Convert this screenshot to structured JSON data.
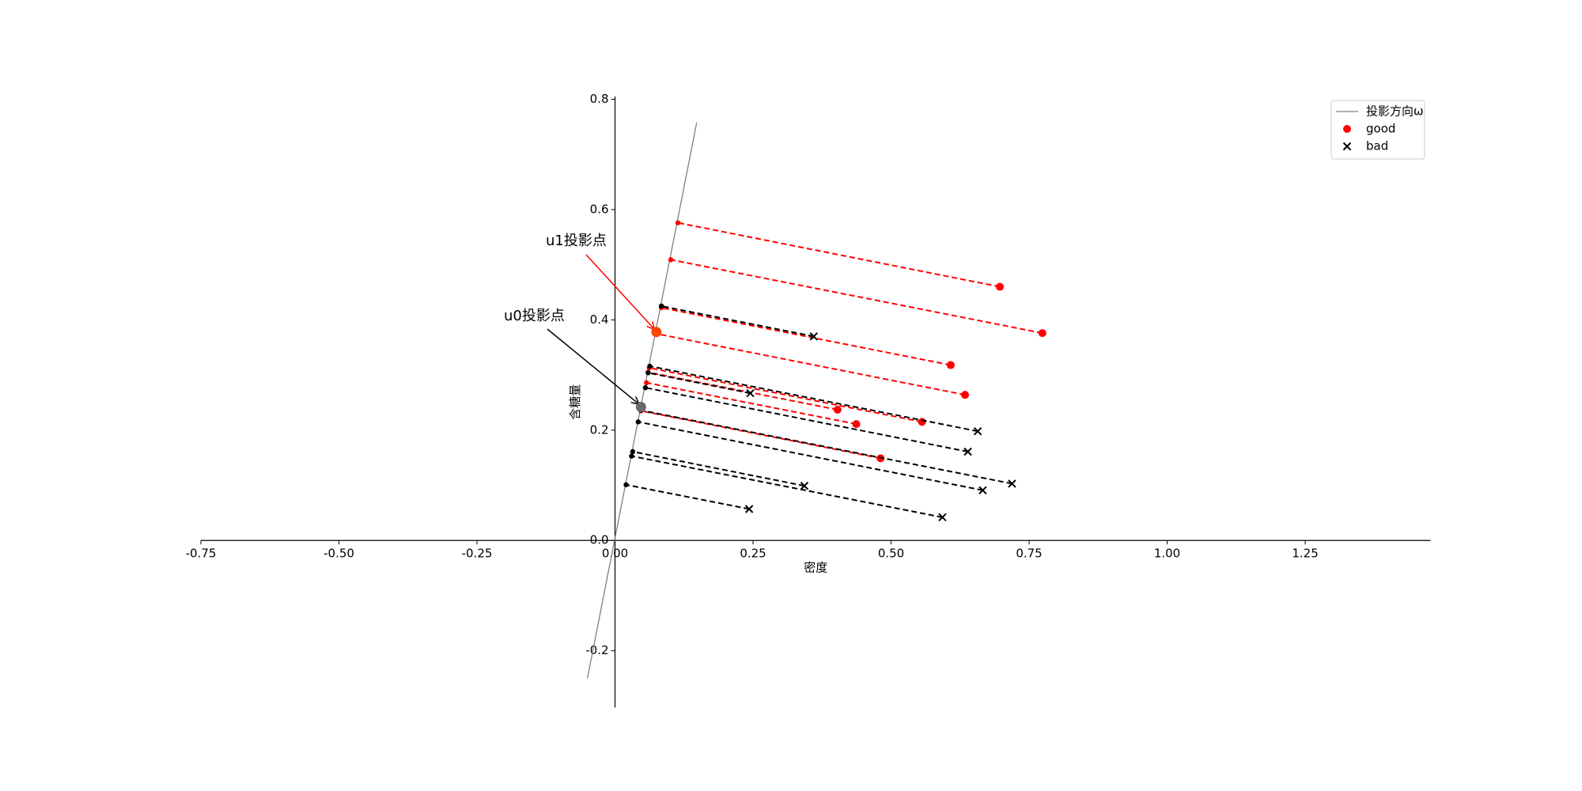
{
  "chart_data": {
    "type": "scatter",
    "xlabel": "密度",
    "ylabel": "含糖量",
    "xlim": [
      -0.75,
      1.477
    ],
    "ylim": [
      -0.303,
      0.805
    ],
    "xticks": [
      {
        "value": -0.75,
        "label": "-0.75"
      },
      {
        "value": -0.5,
        "label": "-0.50"
      },
      {
        "value": -0.25,
        "label": "-0.25"
      },
      {
        "value": 0,
        "label": "0.00"
      },
      {
        "value": 0.25,
        "label": "0.25"
      },
      {
        "value": 0.5,
        "label": "0.50"
      },
      {
        "value": 0.75,
        "label": "0.75"
      },
      {
        "value": 1,
        "label": "1.00"
      },
      {
        "value": 1.25,
        "label": "1.25"
      }
    ],
    "yticks": [
      {
        "value": -0.2,
        "label": "-0.2"
      },
      {
        "value": 0,
        "label": "0.0"
      },
      {
        "value": 0.2,
        "label": "0.2"
      },
      {
        "value": 0.4,
        "label": "0.4"
      },
      {
        "value": 0.6,
        "label": "0.6"
      },
      {
        "value": 0.8,
        "label": "0.8"
      }
    ],
    "legend": "upper right",
    "direction": {
      "name": "投影方向ω",
      "color": "#808080",
      "x": [
        -0.05,
        0.148
      ],
      "y": [
        -0.25,
        0.758
      ]
    },
    "series": [
      {
        "name": "good",
        "color": "#ff0000",
        "marker": "circle",
        "x": [
          0.697,
          0.774,
          0.634,
          0.608,
          0.556,
          0.403,
          0.481,
          0.437
        ],
        "y": [
          0.46,
          0.376,
          0.264,
          0.318,
          0.215,
          0.237,
          0.149,
          0.211
        ],
        "projection_x": [
          0.114,
          0.101,
          0.074,
          0.084,
          0.062,
          0.06,
          0.047,
          0.057
        ],
        "projection_y": [
          0.576,
          0.509,
          0.375,
          0.422,
          0.313,
          0.305,
          0.235,
          0.286
        ]
      },
      {
        "name": "bad",
        "color": "#000000",
        "marker": "x",
        "x": [
          0.666,
          0.243,
          0.245,
          0.343,
          0.639,
          0.657,
          0.36,
          0.593,
          0.719
        ],
        "y": [
          0.091,
          0.057,
          0.267,
          0.099,
          0.161,
          0.198,
          0.37,
          0.042,
          0.103
        ],
        "projection_x": [
          0.042,
          0.02,
          0.06,
          0.032,
          0.055,
          0.063,
          0.084,
          0.03,
          0.047
        ],
        "projection_y": [
          0.215,
          0.101,
          0.304,
          0.161,
          0.277,
          0.316,
          0.425,
          0.153,
          0.236
        ]
      }
    ],
    "means": [
      {
        "label": "u1投影点",
        "x": 0.075,
        "y": 0.378,
        "color": "#ff4500"
      },
      {
        "label": "u0投影点",
        "x": 0.047,
        "y": 0.242,
        "color": "#696969"
      }
    ]
  }
}
